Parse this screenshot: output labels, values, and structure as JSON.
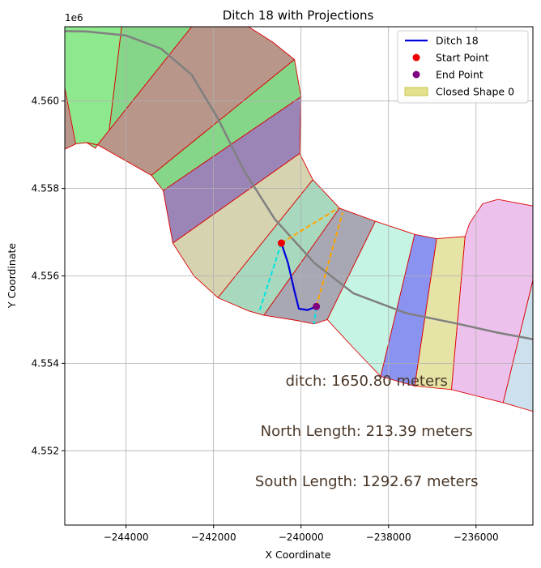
{
  "chart_data": {
    "type": "scatter",
    "title": "Ditch 18 with Projections",
    "xlabel": "X Coordinate",
    "ylabel": "Y Coordinate",
    "y_offset_label": "1e6",
    "xlim": [
      -245400,
      -234700
    ],
    "ylim": [
      4.5503,
      4.5617
    ],
    "y_scale": 1000000,
    "xticks": [
      {
        "value": -244000,
        "label": "−244000"
      },
      {
        "value": -242000,
        "label": "−242000"
      },
      {
        "value": -240000,
        "label": "−240000"
      },
      {
        "value": -238000,
        "label": "−238000"
      },
      {
        "value": -236000,
        "label": "−236000"
      }
    ],
    "yticks": [
      {
        "value": 4.552,
        "label": "4.552"
      },
      {
        "value": 4.554,
        "label": "4.554"
      },
      {
        "value": 4.556,
        "label": "4.556"
      },
      {
        "value": 4.558,
        "label": "4.558"
      },
      {
        "value": 4.56,
        "label": "4.560"
      }
    ],
    "grid": true,
    "legend_position": "top-right",
    "legend": [
      {
        "label": "Ditch 18",
        "kind": "line",
        "color": "#0000dd"
      },
      {
        "label": "Start Point",
        "kind": "point",
        "color": "#ee0000"
      },
      {
        "label": "End Point",
        "kind": "point",
        "color": "#800080"
      },
      {
        "label": "Closed Shape 0",
        "kind": "patch",
        "color": "#e3e08e",
        "edge": "#c8c44a"
      }
    ],
    "polygons": [
      {
        "color": "#8ee88e",
        "points": [
          [
            -245400,
            4.5617
          ],
          [
            -244100,
            4.5617
          ],
          [
            -244430,
            4.55895
          ],
          [
            -244900,
            4.55905
          ],
          [
            -245150,
            4.55902
          ],
          [
            -245400,
            4.5589
          ]
        ]
      },
      {
        "color": "#b8978a",
        "points": [
          [
            -245400,
            4.5603
          ],
          [
            -245150,
            4.55902
          ],
          [
            -245400,
            4.5589
          ]
        ]
      },
      {
        "color": "#85d688",
        "points": [
          [
            -244100,
            4.5617
          ],
          [
            -242500,
            4.5617
          ],
          [
            -244650,
            4.559
          ],
          [
            -244700,
            4.55892
          ],
          [
            -244900,
            4.55905
          ],
          [
            -244430,
            4.55895
          ]
        ]
      },
      {
        "color": "#b8968a",
        "points": [
          [
            -242500,
            4.5617
          ],
          [
            -241200,
            4.5617
          ],
          [
            -240650,
            4.56135
          ],
          [
            -240150,
            4.56095
          ],
          [
            -243420,
            4.5583
          ],
          [
            -244650,
            4.559
          ]
        ]
      },
      {
        "color": "#85d688",
        "points": [
          [
            -240150,
            4.56095
          ],
          [
            -240000,
            4.5601
          ],
          [
            -243150,
            4.55795
          ],
          [
            -243420,
            4.5583
          ]
        ]
      },
      {
        "color": "#9b84b6",
        "points": [
          [
            -240000,
            4.5601
          ],
          [
            -240030,
            4.5588
          ],
          [
            -242930,
            4.55675
          ],
          [
            -243150,
            4.55795
          ]
        ]
      },
      {
        "color": "#d6d3b0",
        "points": [
          [
            -240030,
            4.5588
          ],
          [
            -239730,
            4.5582
          ],
          [
            -241900,
            4.5555
          ],
          [
            -242450,
            4.556
          ],
          [
            -242930,
            4.55675
          ]
        ]
      },
      {
        "color": "#a8d8bd",
        "points": [
          [
            -239730,
            4.5582
          ],
          [
            -239120,
            4.55755
          ],
          [
            -240850,
            4.5551
          ],
          [
            -241200,
            4.5552
          ],
          [
            -241900,
            4.5555
          ]
        ]
      },
      {
        "color": "#a8a8b4",
        "points": [
          [
            -239120,
            4.55755
          ],
          [
            -238300,
            4.55725
          ],
          [
            -239400,
            4.555
          ],
          [
            -239700,
            4.5549
          ],
          [
            -240100,
            4.55498
          ],
          [
            -240850,
            4.5551
          ]
        ]
      },
      {
        "color": "#c6f4e4",
        "points": [
          [
            -238300,
            4.55725
          ],
          [
            -237400,
            4.55695
          ],
          [
            -238180,
            4.5537
          ],
          [
            -238800,
            4.55435
          ],
          [
            -239400,
            4.555
          ]
        ]
      },
      {
        "color": "#8b93f0",
        "points": [
          [
            -237400,
            4.55695
          ],
          [
            -236900,
            4.55685
          ],
          [
            -237400,
            4.55348
          ],
          [
            -238180,
            4.5537
          ]
        ]
      },
      {
        "color": "#e5e3a6",
        "points": [
          [
            -236900,
            4.55685
          ],
          [
            -236250,
            4.5569
          ],
          [
            -236560,
            4.5534
          ],
          [
            -237400,
            4.55348
          ]
        ]
      },
      {
        "color": "#ecc2ec",
        "points": [
          [
            -236250,
            4.5569
          ],
          [
            -236150,
            4.5572
          ],
          [
            -235850,
            4.55765
          ],
          [
            -235500,
            4.55775
          ],
          [
            -234700,
            4.5576
          ],
          [
            -234700,
            4.5559
          ],
          [
            -235380,
            4.5531
          ],
          [
            -236560,
            4.5534
          ]
        ]
      },
      {
        "color": "#cce0ee",
        "points": [
          [
            -234700,
            4.5559
          ],
          [
            -235380,
            4.5531
          ],
          [
            -234700,
            4.5529
          ]
        ]
      }
    ],
    "reference_curve": {
      "color": "#808080",
      "points": [
        [
          -245400,
          4.5616
        ],
        [
          -244900,
          4.56159
        ],
        [
          -244000,
          4.5615
        ],
        [
          -243200,
          4.5612
        ],
        [
          -242500,
          4.5606
        ],
        [
          -241900,
          4.5596
        ],
        [
          -241300,
          4.5584
        ],
        [
          -240600,
          4.5573
        ],
        [
          -239700,
          4.5563
        ],
        [
          -238800,
          4.5556
        ],
        [
          -237600,
          4.55515
        ],
        [
          -236400,
          4.5549
        ],
        [
          -235500,
          4.5547
        ],
        [
          -234700,
          4.55455
        ]
      ]
    },
    "series": [
      {
        "name": "Ditch 18",
        "color": "#0000dd",
        "points": [
          [
            -240450,
            4.55675
          ],
          [
            -240300,
            4.5563
          ],
          [
            -240150,
            4.55565
          ],
          [
            -240050,
            4.55525
          ],
          [
            -239850,
            4.55522
          ],
          [
            -239650,
            4.5553
          ]
        ]
      }
    ],
    "projections": [
      {
        "color": "#00e5e5",
        "points": [
          [
            -240450,
            4.55675
          ],
          [
            -240950,
            4.5552
          ]
        ]
      },
      {
        "color": "#00e5e5",
        "points": [
          [
            -239650,
            4.5553
          ],
          [
            -239700,
            4.5549
          ]
        ]
      },
      {
        "color": "#ffa500",
        "points": [
          [
            -240450,
            4.55675
          ],
          [
            -239150,
            4.55755
          ]
        ]
      },
      {
        "color": "#ffa500",
        "points": [
          [
            -239650,
            4.5553
          ],
          [
            -239050,
            4.55745
          ]
        ]
      }
    ],
    "start_point": {
      "x": -240450,
      "y": 4.55675,
      "color": "#ee0000"
    },
    "end_point": {
      "x": -239650,
      "y": 4.5553,
      "color": "#800080"
    },
    "annotations": [
      {
        "text": "ditch: 1650.80 meters",
        "x": -238500,
        "y": 4.5536
      },
      {
        "text": "North Length: 213.39 meters",
        "x": -238500,
        "y": 4.55245
      },
      {
        "text": "South Length: 1292.67 meters",
        "x": -238500,
        "y": 4.5513
      }
    ]
  }
}
